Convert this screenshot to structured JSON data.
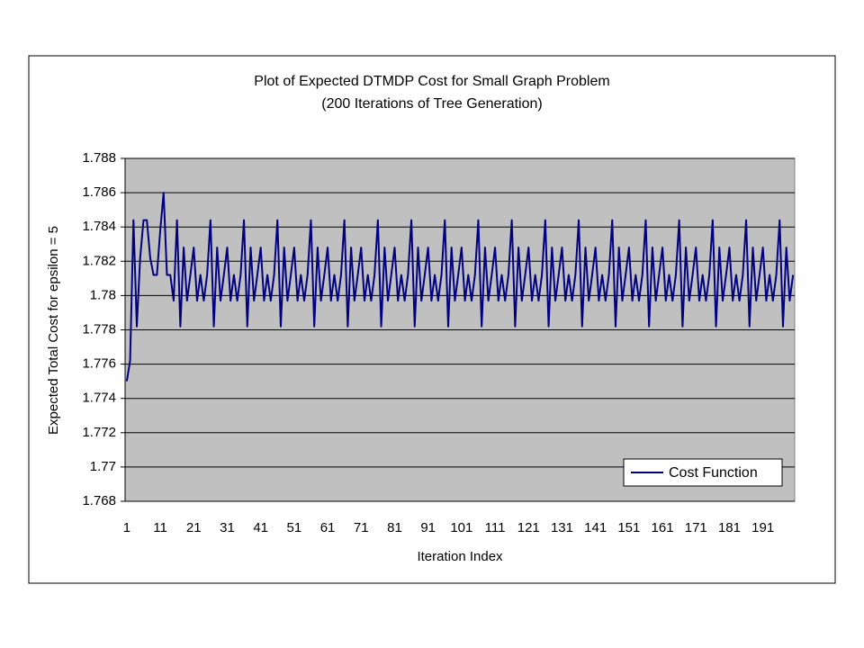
{
  "chart_data": {
    "type": "line",
    "title": "Plot of Expected DTMDP Cost for Small Graph Problem",
    "subtitle": "(200 Iterations of Tree Generation)",
    "x_label": "Iteration Index",
    "y_label": "Expected Total Cost for epsilon = 5",
    "categories": [
      "1",
      null,
      null,
      null,
      null,
      null,
      null,
      null,
      null,
      null,
      "11",
      null,
      null,
      null,
      null,
      null,
      null,
      null,
      null,
      null,
      "21",
      null,
      null,
      null,
      null,
      null,
      null,
      null,
      null,
      null,
      "31",
      null,
      null,
      null,
      null,
      null,
      null,
      null,
      null,
      null,
      "41",
      null,
      null,
      null,
      null,
      null,
      null,
      null,
      null,
      null,
      "51",
      null,
      null,
      null,
      null,
      null,
      null,
      null,
      null,
      null,
      "61",
      null,
      null,
      null,
      null,
      null,
      null,
      null,
      null,
      null,
      "71",
      null,
      null,
      null,
      null,
      null,
      null,
      null,
      null,
      null,
      "81",
      null,
      null,
      null,
      null,
      null,
      null,
      null,
      null,
      null,
      "91",
      null,
      null,
      null,
      null,
      null,
      null,
      null,
      null,
      null,
      "101",
      null,
      null,
      null,
      null,
      null,
      null,
      null,
      null,
      null,
      "111",
      null,
      null,
      null,
      null,
      null,
      null,
      null,
      null,
      null,
      "121",
      null,
      null,
      null,
      null,
      null,
      null,
      null,
      null,
      null,
      "131",
      null,
      null,
      null,
      null,
      null,
      null,
      null,
      null,
      null,
      "141",
      null,
      null,
      null,
      null,
      null,
      null,
      null,
      null,
      null,
      "151",
      null,
      null,
      null,
      null,
      null,
      null,
      null,
      null,
      null,
      "161",
      null,
      null,
      null,
      null,
      null,
      null,
      null,
      null,
      null,
      "171",
      null,
      null,
      null,
      null,
      null,
      null,
      null,
      null,
      null,
      "181",
      null,
      null,
      null,
      null,
      null,
      null,
      null,
      null,
      null,
      "191",
      null,
      null,
      null,
      null,
      null,
      null,
      null,
      null,
      null
    ],
    "series": [
      {
        "name": "Cost Function",
        "color": "#000080",
        "values": [
          1.775,
          1.7762,
          1.7844,
          1.7782,
          1.7822,
          1.7844,
          1.7844,
          1.7822,
          1.7812,
          1.7812,
          1.7838,
          1.786,
          1.7812,
          1.7812,
          1.7797,
          1.7844,
          1.7782,
          1.7828,
          1.7797,
          1.7812,
          1.7828,
          1.7797,
          1.7812,
          1.7797,
          1.7812,
          1.7844,
          1.7782,
          1.7828,
          1.7797,
          1.7812,
          1.7828,
          1.7797,
          1.7812,
          1.7797,
          1.7812,
          1.7844,
          1.7782,
          1.7828,
          1.7797,
          1.7812,
          1.7828,
          1.7797,
          1.7812,
          1.7797,
          1.7812,
          1.7844,
          1.7782,
          1.7828,
          1.7797,
          1.7812,
          1.7828,
          1.7797,
          1.7812,
          1.7797,
          1.7812,
          1.7844,
          1.7782,
          1.7828,
          1.7797,
          1.7812,
          1.7828,
          1.7797,
          1.7812,
          1.7797,
          1.7812,
          1.7844,
          1.7782,
          1.7828,
          1.7797,
          1.7812,
          1.7828,
          1.7797,
          1.7812,
          1.7797,
          1.7812,
          1.7844,
          1.7782,
          1.7828,
          1.7797,
          1.7812,
          1.7828,
          1.7797,
          1.7812,
          1.7797,
          1.7812,
          1.7844,
          1.7782,
          1.7828,
          1.7797,
          1.7812,
          1.7828,
          1.7797,
          1.7812,
          1.7797,
          1.7812,
          1.7844,
          1.7782,
          1.7828,
          1.7797,
          1.7812,
          1.7828,
          1.7797,
          1.7812,
          1.7797,
          1.7812,
          1.7844,
          1.7782,
          1.7828,
          1.7797,
          1.7812,
          1.7828,
          1.7797,
          1.7812,
          1.7797,
          1.7812,
          1.7844,
          1.7782,
          1.7828,
          1.7797,
          1.7812,
          1.7828,
          1.7797,
          1.7812,
          1.7797,
          1.7812,
          1.7844,
          1.7782,
          1.7828,
          1.7797,
          1.7812,
          1.7828,
          1.7797,
          1.7812,
          1.7797,
          1.7812,
          1.7844,
          1.7782,
          1.7828,
          1.7797,
          1.7812,
          1.7828,
          1.7797,
          1.7812,
          1.7797,
          1.7812,
          1.7844,
          1.7782,
          1.7828,
          1.7797,
          1.7812,
          1.7828,
          1.7797,
          1.7812,
          1.7797,
          1.7812,
          1.7844,
          1.7782,
          1.7828,
          1.7797,
          1.7812,
          1.7828,
          1.7797,
          1.7812,
          1.7797,
          1.7812,
          1.7844,
          1.7782,
          1.7828,
          1.7797,
          1.7812,
          1.7828,
          1.7797,
          1.7812,
          1.7797,
          1.7812,
          1.7844,
          1.7782,
          1.7828,
          1.7797,
          1.7812,
          1.7828,
          1.7797,
          1.7812,
          1.7797,
          1.7812,
          1.7844,
          1.7782,
          1.7828,
          1.7797,
          1.7812,
          1.7828,
          1.7797,
          1.7812,
          1.7797,
          1.7812,
          1.7844,
          1.7782,
          1.7828,
          1.7797,
          1.7812
        ]
      }
    ],
    "ylim": [
      1.768,
      1.788
    ],
    "yticks": [
      1.768,
      1.77,
      1.772,
      1.774,
      1.776,
      1.778,
      1.78,
      1.782,
      1.784,
      1.786,
      1.788
    ],
    "grid": true,
    "legend": "lower-right",
    "plot_background": "#c0c0c0"
  }
}
